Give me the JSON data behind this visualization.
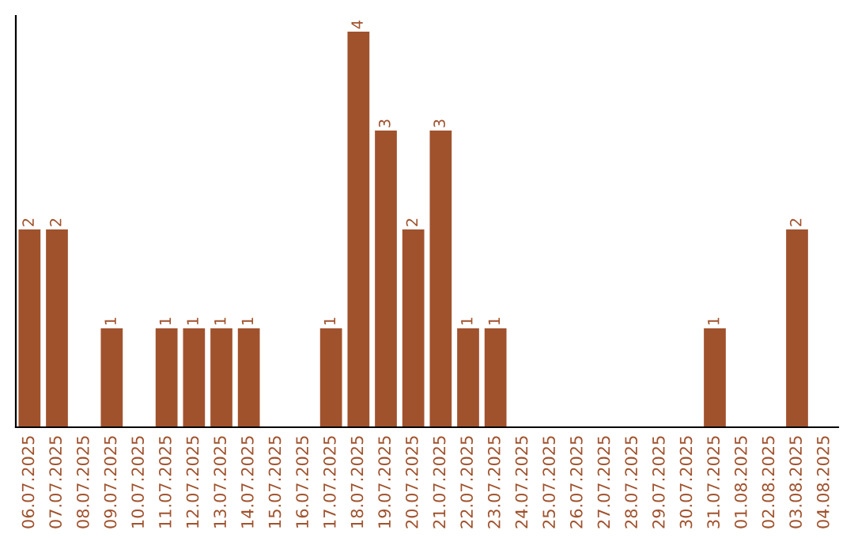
{
  "chart_data": {
    "type": "bar",
    "categories": [
      "06.07.2025",
      "07.07.2025",
      "08.07.2025",
      "09.07.2025",
      "10.07.2025",
      "11.07.2025",
      "12.07.2025",
      "13.07.2025",
      "14.07.2025",
      "15.07.2025",
      "16.07.2025",
      "17.07.2025",
      "18.07.2025",
      "19.07.2025",
      "20.07.2025",
      "21.07.2025",
      "22.07.2025",
      "23.07.2025",
      "24.07.2025",
      "25.07.2025",
      "26.07.2025",
      "27.07.2025",
      "28.07.2025",
      "29.07.2025",
      "30.07.2025",
      "31.07.2025",
      "01.08.2025",
      "02.08.2025",
      "03.08.2025",
      "04.08.2025"
    ],
    "values": [
      2,
      2,
      0,
      1,
      0,
      1,
      1,
      1,
      1,
      0,
      0,
      1,
      4,
      3,
      2,
      3,
      1,
      1,
      0,
      0,
      0,
      0,
      0,
      0,
      0,
      1,
      0,
      0,
      2,
      0
    ],
    "value_labels": [
      "2",
      "2",
      null,
      "1",
      null,
      "1",
      "1",
      "1",
      "1",
      null,
      null,
      "1",
      "4",
      "3",
      "2",
      "3",
      "1",
      "1",
      null,
      null,
      null,
      null,
      null,
      null,
      null,
      "1",
      null,
      null,
      "2",
      null
    ],
    "color": "#a0522d",
    "tick_labels": "x",
    "grid": false,
    "legend": false
  }
}
